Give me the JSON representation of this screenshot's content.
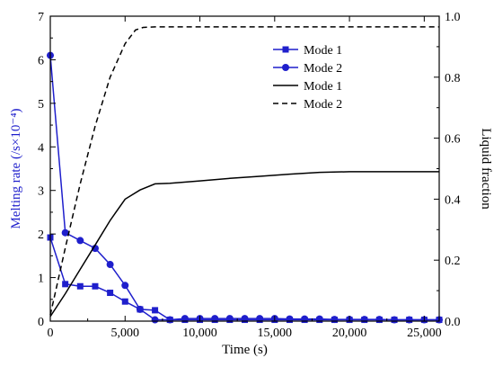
{
  "chart_data": {
    "type": "line",
    "title": "",
    "xlabel": "Time (s)",
    "ylabel_left": "Melting rate (/s×10⁻⁴)",
    "ylabel_right": "Liquid fraction",
    "xlim": [
      0,
      26000
    ],
    "ylim_left": [
      0,
      7
    ],
    "ylim_right": [
      0,
      1.0
    ],
    "x_ticks": [
      0,
      5000,
      10000,
      15000,
      20000,
      25000
    ],
    "x_tick_labels": [
      "0",
      "5,000",
      "10,000",
      "15,000",
      "20,000",
      "25,000"
    ],
    "y_left_ticks": [
      0,
      1,
      2,
      3,
      4,
      5,
      6,
      7
    ],
    "y_left_tick_labels": [
      "0",
      "1",
      "2",
      "3",
      "4",
      "5",
      "6",
      "7"
    ],
    "y_right_ticks": [
      0,
      0.2,
      0.4,
      0.6,
      0.8,
      1.0
    ],
    "y_right_tick_labels": [
      "0.0",
      "0.2",
      "0.4",
      "0.6",
      "0.8",
      "1.0"
    ],
    "grid": false,
    "legend_position": "top-right",
    "colors": {
      "rate": "#1f1fcc",
      "fraction": "#000000"
    },
    "series": [
      {
        "name": "Mode 1",
        "axis": "left",
        "style": "solid",
        "marker": "square",
        "color": "#1f1fcc",
        "x": [
          0,
          1000,
          2000,
          3000,
          4000,
          5000,
          6000,
          7000,
          8000,
          9000,
          10000,
          11000,
          12000,
          13000,
          14000,
          15000,
          16000,
          17000,
          18000,
          19000,
          20000,
          21000,
          22000,
          23000,
          24000,
          25000,
          26000
        ],
        "y": [
          1.92,
          0.85,
          0.8,
          0.8,
          0.65,
          0.45,
          0.27,
          0.25,
          0.03,
          0.03,
          0.03,
          0.03,
          0.03,
          0.03,
          0.03,
          0.03,
          0.03,
          0.03,
          0.03,
          0.03,
          0.03,
          0.03,
          0.03,
          0.03,
          0.03,
          0.03,
          0.03
        ]
      },
      {
        "name": "Mode 2",
        "axis": "left",
        "style": "solid",
        "marker": "circle",
        "color": "#1f1fcc",
        "x": [
          0,
          1000,
          2000,
          3000,
          4000,
          5000,
          6000,
          7000,
          8000,
          9000,
          10000,
          11000,
          12000,
          13000,
          14000,
          15000,
          16000,
          17000,
          18000,
          19000,
          20000,
          21000,
          22000,
          23000,
          24000,
          25000,
          26000
        ],
        "y": [
          6.1,
          2.03,
          1.85,
          1.67,
          1.3,
          0.82,
          0.27,
          0.03,
          0.03,
          0.06,
          0.06,
          0.06,
          0.06,
          0.06,
          0.06,
          0.06,
          0.05,
          0.05,
          0.05,
          0.04,
          0.04,
          0.04,
          0.04,
          0.03,
          0.03,
          0.03,
          0.03
        ]
      },
      {
        "name": "Mode 1",
        "axis": "right",
        "style": "solid",
        "marker": "none",
        "color": "#000000",
        "x": [
          0,
          1000,
          2000,
          3000,
          4000,
          5000,
          6000,
          7000,
          8000,
          10000,
          12000,
          14000,
          16000,
          18000,
          20000,
          22000,
          24000,
          26000
        ],
        "y": [
          0.015,
          0.09,
          0.17,
          0.25,
          0.33,
          0.4,
          0.43,
          0.45,
          0.452,
          0.46,
          0.468,
          0.475,
          0.482,
          0.488,
          0.49,
          0.49,
          0.49,
          0.49
        ]
      },
      {
        "name": "Mode 2",
        "axis": "right",
        "style": "dashed",
        "marker": "none",
        "color": "#000000",
        "x": [
          0,
          1000,
          2000,
          3000,
          4000,
          5000,
          5700,
          6200,
          7000,
          8000,
          10000,
          15000,
          20000,
          26000
        ],
        "y": [
          0.02,
          0.24,
          0.45,
          0.64,
          0.8,
          0.91,
          0.955,
          0.963,
          0.965,
          0.965,
          0.965,
          0.965,
          0.965,
          0.965
        ]
      }
    ]
  }
}
